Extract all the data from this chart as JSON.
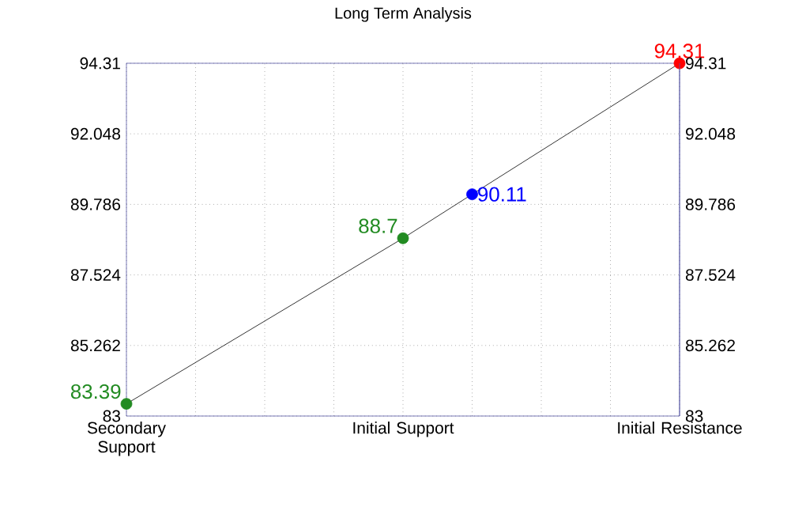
{
  "chart_data": {
    "type": "line",
    "title": "Long Term Analysis",
    "categories": [
      "Secondary Support",
      null,
      null,
      null,
      "Initial Support",
      null,
      null,
      null,
      "Initial Resistance"
    ],
    "ylim": [
      83,
      94.31
    ],
    "yticks": [
      83,
      85.262,
      87.524,
      89.786,
      92.048,
      94.31
    ],
    "y2lim": [
      83,
      94.31
    ],
    "y2ticks": [
      83,
      85.262,
      87.524,
      89.786,
      92.048,
      94.31
    ],
    "grid": true,
    "marker": "circle",
    "series": [
      {
        "color": "#000000",
        "colors": [
          "#228b22",
          null,
          null,
          null,
          "#228b22",
          "#0000ff",
          null,
          null,
          "#ff0000"
        ],
        "values": [
          83.39,
          null,
          null,
          null,
          88.7,
          90.11,
          null,
          null,
          94.31
        ],
        "value_labels": [
          "83.39",
          null,
          null,
          null,
          "88.7",
          "90.11",
          null,
          null,
          "94.31"
        ]
      }
    ]
  }
}
